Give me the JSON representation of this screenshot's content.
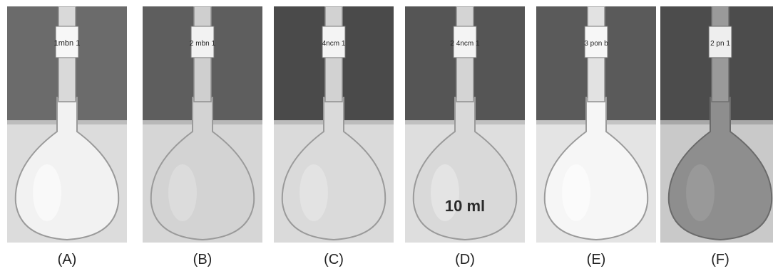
{
  "figure": {
    "panels": [
      {
        "caption": "(A)",
        "neck_label": "1mbn 1",
        "flask_label": "",
        "liquid_color": "#f2f2f2",
        "sheen_color": "#ffffff",
        "background_color": "#6b6b6b"
      },
      {
        "caption": "(B)",
        "neck_label": "2 mbn 1",
        "flask_label": "",
        "liquid_color": "#d3d3d3",
        "sheen_color": "#e6e6e6",
        "background_color": "#5e5e5e"
      },
      {
        "caption": "(C)",
        "neck_label": "4ncm 1",
        "flask_label": "",
        "liquid_color": "#dadada",
        "sheen_color": "#ececec",
        "background_color": "#4a4a4a"
      },
      {
        "caption": "(D)",
        "neck_label": "2 4ncm 1",
        "flask_label": "10 ml",
        "liquid_color": "#d9d9d9",
        "sheen_color": "#f0f0f0",
        "background_color": "#555555"
      },
      {
        "caption": "(E)",
        "neck_label": "3 pon b",
        "flask_label": "",
        "liquid_color": "#f6f6f6",
        "sheen_color": "#ffffff",
        "background_color": "#5a5a5a"
      },
      {
        "caption": "(F)",
        "neck_label": "2 pn 1",
        "flask_label": "",
        "liquid_color": "#8e8e8e",
        "sheen_color": "#a3a3a3",
        "background_color": "#4c4c4c"
      }
    ]
  }
}
